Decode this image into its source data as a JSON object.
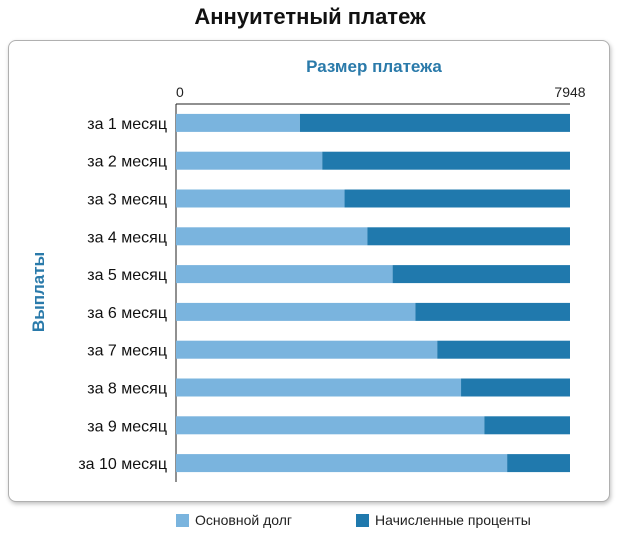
{
  "title": "Аннуитетный платеж",
  "colors": {
    "principal": "#7ab4de",
    "interest": "#2079ad",
    "axis_text": "#2a7aaa"
  },
  "legend": {
    "principal": "Основной долг",
    "interest": "Начисленные проценты"
  },
  "chart_data": {
    "type": "bar",
    "orientation": "horizontal",
    "stacked": true,
    "title": "Аннуитетный платеж",
    "xlabel": "Размер платежа",
    "ylabel": "Выплаты",
    "xlim": [
      0,
      7948
    ],
    "x_ticks": [
      "0",
      "7948"
    ],
    "categories": [
      "за 1 месяц",
      "за 2 месяц",
      "за 3 месяц",
      "за 4 месяц",
      "за 5 месяц",
      "за 6 месяц",
      "за 7 месяц",
      "за 8 месяц",
      "за 9 месяц",
      "за 10 месяц"
    ],
    "series": [
      {
        "name": "Основной долг",
        "values": [
          2500,
          2950,
          3400,
          3860,
          4370,
          4830,
          5270,
          5750,
          6220,
          6680
        ]
      },
      {
        "name": "Начисленные проценты",
        "values": [
          5448,
          4998,
          4548,
          4088,
          3578,
          3118,
          2678,
          2198,
          1728,
          1268
        ]
      }
    ],
    "legend_position": "bottom",
    "grid": false
  }
}
